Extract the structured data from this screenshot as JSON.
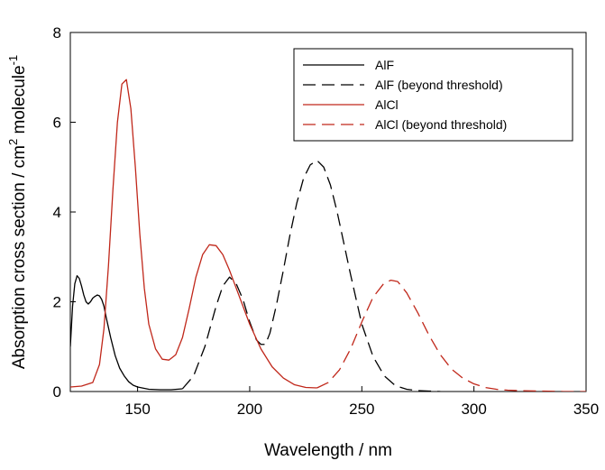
{
  "chart_data": {
    "type": "line",
    "title": "",
    "xlabel": "Wavelength / nm",
    "ylabel": "Absorption cross section / cm² molecule⁻¹",
    "ylabel_parts": {
      "main": "Absorption cross section / cm",
      "sup1": "2",
      "mid": " molecule",
      "sup2": "-1"
    },
    "xlim": [
      120,
      350
    ],
    "ylim": [
      0,
      8
    ],
    "xticks": [
      150,
      200,
      250,
      300,
      350
    ],
    "yticks": [
      0,
      2,
      4,
      6,
      8
    ],
    "grid": false,
    "legend_position": "top-right",
    "series": [
      {
        "name": "AlF",
        "color": "#000000",
        "dash": "solid",
        "x": [
          120,
          121,
          122,
          123,
          124,
          125,
          126,
          127,
          128,
          129,
          130,
          131,
          132,
          133,
          134,
          135,
          136,
          138,
          140,
          142,
          144,
          146,
          148,
          150,
          155,
          160,
          165,
          170
        ],
        "y": [
          1.0,
          1.9,
          2.4,
          2.58,
          2.52,
          2.35,
          2.15,
          2.0,
          1.95,
          2.0,
          2.08,
          2.12,
          2.15,
          2.13,
          2.05,
          1.9,
          1.65,
          1.2,
          0.8,
          0.52,
          0.35,
          0.22,
          0.14,
          0.1,
          0.05,
          0.04,
          0.04,
          0.06
        ]
      },
      {
        "name": "AlF (beyond threshold)",
        "color": "#000000",
        "dash": "long-dash",
        "x": [
          170,
          175,
          180,
          185,
          188,
          191,
          194,
          197,
          200,
          203,
          205,
          207,
          209,
          212,
          215,
          218,
          221,
          224,
          227,
          230,
          233,
          236,
          239,
          242,
          245,
          250,
          255,
          260,
          265,
          270,
          275,
          280,
          285
        ],
        "y": [
          0.06,
          0.35,
          1.0,
          1.9,
          2.35,
          2.55,
          2.4,
          2.05,
          1.55,
          1.15,
          1.05,
          1.05,
          1.3,
          1.95,
          2.7,
          3.5,
          4.2,
          4.75,
          5.05,
          5.15,
          5.0,
          4.6,
          4.0,
          3.3,
          2.6,
          1.5,
          0.78,
          0.35,
          0.13,
          0.05,
          0.02,
          0.01,
          0.0
        ]
      },
      {
        "name": "AlCl",
        "color": "#c0271a",
        "dash": "solid",
        "x": [
          120,
          125,
          130,
          133,
          135,
          137,
          139,
          141,
          143,
          145,
          147,
          149,
          151,
          153,
          155,
          158,
          161,
          164,
          167,
          170,
          173,
          176,
          179,
          182,
          185,
          188,
          191,
          194,
          197,
          200,
          205,
          210,
          215,
          220,
          225,
          230
        ],
        "y": [
          0.1,
          0.12,
          0.2,
          0.6,
          1.4,
          2.8,
          4.5,
          6.0,
          6.85,
          6.95,
          6.3,
          5.0,
          3.5,
          2.3,
          1.5,
          0.95,
          0.72,
          0.7,
          0.82,
          1.2,
          1.85,
          2.55,
          3.05,
          3.27,
          3.25,
          3.05,
          2.7,
          2.3,
          1.9,
          1.5,
          0.95,
          0.55,
          0.3,
          0.15,
          0.09,
          0.08
        ]
      },
      {
        "name": "AlCl (beyond threshold)",
        "color": "#c0271a",
        "dash": "long-dash",
        "x": [
          230,
          235,
          240,
          245,
          250,
          255,
          260,
          263,
          266,
          270,
          275,
          280,
          285,
          290,
          295,
          300,
          305,
          310,
          315,
          320,
          330,
          340,
          350
        ],
        "y": [
          0.08,
          0.2,
          0.48,
          0.95,
          1.55,
          2.1,
          2.42,
          2.48,
          2.45,
          2.2,
          1.75,
          1.25,
          0.82,
          0.5,
          0.3,
          0.17,
          0.09,
          0.05,
          0.03,
          0.02,
          0.01,
          0.0,
          0.0
        ]
      }
    ]
  }
}
